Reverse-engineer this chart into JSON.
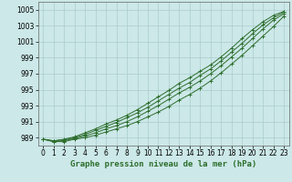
{
  "title": "Graphe pression niveau de la mer (hPa)",
  "bg_color": "#cce8e8",
  "grid_color": "#aacccc",
  "line_color": "#2d6e2d",
  "x_values": [
    0,
    1,
    2,
    3,
    4,
    5,
    6,
    7,
    8,
    9,
    10,
    11,
    12,
    13,
    14,
    15,
    16,
    17,
    18,
    19,
    20,
    21,
    22,
    23
  ],
  "series": [
    [
      988.8,
      988.5,
      988.5,
      988.8,
      989.0,
      989.3,
      989.7,
      990.1,
      990.5,
      991.0,
      991.6,
      992.2,
      992.9,
      993.7,
      994.4,
      995.2,
      996.1,
      997.1,
      998.2,
      999.3,
      1000.5,
      1001.7,
      1002.9,
      1004.2
    ],
    [
      988.8,
      988.5,
      988.6,
      988.9,
      989.2,
      989.6,
      990.1,
      990.5,
      991.0,
      991.6,
      992.3,
      993.0,
      993.8,
      994.6,
      995.3,
      996.1,
      997.0,
      998.0,
      999.1,
      1000.2,
      1001.4,
      1002.6,
      1003.7,
      1004.5
    ],
    [
      988.8,
      988.6,
      988.7,
      989.0,
      989.4,
      989.9,
      990.4,
      990.9,
      991.5,
      992.1,
      992.8,
      993.6,
      994.4,
      995.2,
      995.9,
      996.8,
      997.6,
      998.6,
      999.7,
      1000.8,
      1002.0,
      1003.1,
      1004.0,
      1004.7
    ],
    [
      988.8,
      988.6,
      988.8,
      989.1,
      989.6,
      990.1,
      990.7,
      991.2,
      991.8,
      992.5,
      993.3,
      994.1,
      994.9,
      995.8,
      996.5,
      997.3,
      998.1,
      999.1,
      1000.2,
      1001.4,
      1002.5,
      1003.5,
      1004.3,
      1004.8
    ]
  ],
  "ylim": [
    988,
    1006
  ],
  "yticks": [
    989,
    991,
    993,
    995,
    997,
    999,
    1001,
    1003,
    1005
  ],
  "xlim": [
    -0.5,
    23.5
  ],
  "xticks": [
    0,
    1,
    2,
    3,
    4,
    5,
    6,
    7,
    8,
    9,
    10,
    11,
    12,
    13,
    14,
    15,
    16,
    17,
    18,
    19,
    20,
    21,
    22,
    23
  ],
  "tick_fontsize": 5.5,
  "label_fontsize": 6.5
}
